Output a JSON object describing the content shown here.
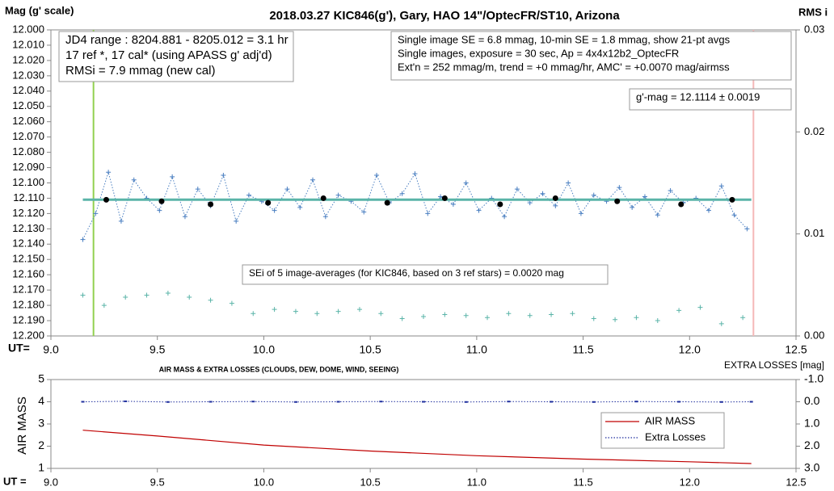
{
  "chart_data": [
    {
      "type": "line",
      "title": "2018.03.27  KIC846(g'),  Gary, HAO  14\"/OptecFR/ST10,  Arizona",
      "y_label": "Mag (g' scale)",
      "y2_label": "RMS i",
      "x_label": "UT=",
      "xlim": [
        9.0,
        12.5
      ],
      "xticks": [
        {
          "value": 9,
          "label": "9.0"
        },
        9.5,
        {
          "value": 10,
          "label": "10.0"
        },
        10.5,
        {
          "value": 11,
          "label": "11.0"
        },
        11.5,
        {
          "value": 12,
          "label": "12.0"
        },
        12.5
      ],
      "ylim": [
        12.0,
        12.2
      ],
      "y_inverted": true,
      "yticks": [
        {
          "value": 12.0,
          "label": "12.000"
        },
        {
          "value": 12.01,
          "label": "12.010"
        },
        {
          "value": 12.02,
          "label": "12.020"
        },
        {
          "value": 12.03,
          "label": "12.030"
        },
        {
          "value": 12.04,
          "label": "12.040"
        },
        {
          "value": 12.05,
          "label": "12.050"
        },
        {
          "value": 12.06,
          "label": "12.060"
        },
        {
          "value": 12.07,
          "label": "12.070"
        },
        {
          "value": 12.08,
          "label": "12.080"
        },
        {
          "value": 12.09,
          "label": "12.090"
        },
        {
          "value": 12.1,
          "label": "12.100"
        },
        {
          "value": 12.11,
          "label": "12.110"
        },
        {
          "value": 12.12,
          "label": "12.120"
        },
        {
          "value": 12.13,
          "label": "12.130"
        },
        {
          "value": 12.14,
          "label": "12.140"
        },
        {
          "value": 12.15,
          "label": "12.150"
        },
        {
          "value": 12.16,
          "label": "12.160"
        },
        {
          "value": 12.17,
          "label": "12.170"
        },
        {
          "value": 12.18,
          "label": "12.180"
        },
        {
          "value": 12.19,
          "label": "12.190"
        },
        {
          "value": 12.2,
          "label": "12.200"
        }
      ],
      "y2lim": [
        0,
        0.03
      ],
      "y2ticks": [
        {
          "value": 0,
          "label": "0.00"
        },
        {
          "value": 0.01,
          "label": "0.01"
        },
        {
          "value": 0.02,
          "label": "0.02"
        },
        {
          "value": 0.03,
          "label": "0.03"
        }
      ],
      "vlines": [
        {
          "x": 9.2,
          "color": "#92d050"
        },
        {
          "x": 12.3,
          "color": "#f4b8b8"
        }
      ],
      "series": [
        {
          "color": "#4a7fc1",
          "marker": "plus",
          "line": "dotted",
          "x": [
            9.15,
            9.21,
            9.27,
            9.33,
            9.39,
            9.45,
            9.51,
            9.57,
            9.63,
            9.69,
            9.75,
            9.81,
            9.87,
            9.93,
            9.99,
            10.05,
            10.11,
            10.17,
            10.23,
            10.29,
            10.35,
            10.41,
            10.47,
            10.53,
            10.59,
            10.65,
            10.71,
            10.77,
            10.83,
            10.89,
            10.95,
            11.01,
            11.07,
            11.13,
            11.19,
            11.25,
            11.31,
            11.37,
            11.43,
            11.49,
            11.55,
            11.61,
            11.67,
            11.73,
            11.79,
            11.85,
            11.91,
            11.97,
            12.03,
            12.09,
            12.15,
            12.21,
            12.27
          ],
          "values": [
            12.137,
            12.12,
            12.093,
            12.125,
            12.098,
            12.11,
            12.118,
            12.096,
            12.122,
            12.104,
            12.115,
            12.095,
            12.125,
            12.108,
            12.112,
            12.118,
            12.104,
            12.116,
            12.098,
            12.122,
            12.108,
            12.112,
            12.119,
            12.095,
            12.113,
            12.107,
            12.094,
            12.12,
            12.109,
            12.114,
            12.1,
            12.118,
            12.11,
            12.122,
            12.104,
            12.113,
            12.107,
            12.115,
            12.1,
            12.12,
            12.108,
            12.112,
            12.103,
            12.116,
            12.109,
            12.121,
            12.105,
            12.113,
            12.11,
            12.118,
            12.102,
            12.121,
            12.13
          ]
        },
        {
          "color": "#5ab4a8",
          "marker": "none",
          "line": "solid",
          "x": [
            9.15,
            12.29
          ],
          "values": [
            12.111,
            12.111
          ]
        },
        {
          "color": "#000000",
          "marker": "dot",
          "line": "none",
          "x": [
            9.26,
            9.52,
            9.75,
            10.02,
            10.28,
            10.58,
            10.85,
            11.11,
            11.37,
            11.66,
            11.96,
            12.2
          ],
          "values": [
            12.111,
            12.112,
            12.114,
            12.113,
            12.11,
            12.113,
            12.11,
            12.114,
            12.11,
            12.112,
            12.114,
            12.111
          ]
        },
        {
          "color": "#5ab4a8",
          "marker": "plus",
          "line": "none",
          "axis": "y2",
          "x": [
            9.15,
            9.25,
            9.35,
            9.45,
            9.55,
            9.65,
            9.75,
            9.85,
            9.95,
            10.05,
            10.15,
            10.25,
            10.35,
            10.45,
            10.55,
            10.65,
            10.75,
            10.85,
            10.95,
            11.05,
            11.15,
            11.25,
            11.35,
            11.45,
            11.55,
            11.65,
            11.75,
            11.85,
            11.95,
            12.05,
            12.15,
            12.25
          ],
          "values": [
            0.004,
            0.003,
            0.0038,
            0.004,
            0.0042,
            0.0038,
            0.0035,
            0.0032,
            0.0022,
            0.0026,
            0.0024,
            0.0022,
            0.0024,
            0.0026,
            0.0022,
            0.0017,
            0.0019,
            0.0021,
            0.002,
            0.0018,
            0.0022,
            0.002,
            0.0021,
            0.0022,
            0.0017,
            0.0016,
            0.0018,
            0.0015,
            0.0025,
            0.0028,
            0.0012,
            0.0018
          ]
        }
      ],
      "annotations": [
        {
          "lines": [
            "JD4 range : 8204.881 - 8205.012 = 3.1  hr",
            "17 ref *, 17 cal* (using APASS g' adj'd)",
            "RMSi = 7.9 mmag (new cal)"
          ]
        },
        {
          "lines": [
            "Single image SE = 6.8 mmag, 10-min SE = 1.8 mmag, show  21-pt avgs",
            "Single images, exposure = 30 sec, Ap = 4x4x12b2_OptecFR",
            "Ext'n = 252 mmag/m, trend =  +0 mmag/hr, AMC' = +0.0070 mag/airmss"
          ]
        },
        {
          "lines": [
            "g'-mag = 12.1114  ± 0.0019"
          ]
        },
        {
          "lines": [
            "SEi of 5 image-averages (for KIC846, based on 3 ref stars) = 0.0020  mag"
          ]
        }
      ]
    },
    {
      "type": "line",
      "title": "AIR MASS & EXTRA LOSSES (CLOUDS, DEW, DOME, WIND, SEEING)",
      "y_label": "AIR MASS",
      "y2_label": "EXTRA LOSSES [mag]",
      "x_label": "UT =",
      "xlim": [
        9.0,
        12.5
      ],
      "xticks": [
        {
          "value": 9,
          "label": "9.0"
        },
        9.5,
        {
          "value": 10,
          "label": "10.0"
        },
        10.5,
        {
          "value": 11,
          "label": "11.0"
        },
        11.5,
        {
          "value": 12,
          "label": "12.0"
        },
        12.5
      ],
      "ylim": [
        1,
        5
      ],
      "yticks": [
        1,
        2,
        3,
        4,
        5
      ],
      "y2lim": [
        -1,
        3
      ],
      "y2_inverted": true,
      "y2ticks": [
        {
          "value": -1,
          "label": "-1.0"
        },
        {
          "value": 0,
          "label": "0.0"
        },
        {
          "value": 1,
          "label": "1.0"
        },
        {
          "value": 2,
          "label": "2.0"
        },
        {
          "value": 3,
          "label": "3.0"
        }
      ],
      "legend": "lower-right",
      "series": [
        {
          "name": "AIR MASS",
          "color": "#c00000",
          "marker": "none",
          "line": "solid",
          "x": [
            9.15,
            9.5,
            10.0,
            10.5,
            11.0,
            11.5,
            12.0,
            12.29
          ],
          "values": [
            2.72,
            2.46,
            2.05,
            1.78,
            1.57,
            1.42,
            1.3,
            1.22
          ]
        },
        {
          "name": "Extra Losses",
          "color": "#1f2f9e",
          "marker": "tick",
          "line": "dotted",
          "axis": "y2",
          "x": [
            9.15,
            9.35,
            9.55,
            9.75,
            9.95,
            10.15,
            10.35,
            10.55,
            10.75,
            10.95,
            11.15,
            11.35,
            11.55,
            11.75,
            11.95,
            12.15,
            12.29
          ],
          "values": [
            0.0,
            -0.02,
            0.01,
            0.0,
            -0.01,
            0.01,
            0.0,
            -0.01,
            0.0,
            0.01,
            -0.01,
            0.0,
            0.01,
            -0.01,
            0.0,
            0.01,
            0.0
          ]
        }
      ]
    }
  ]
}
